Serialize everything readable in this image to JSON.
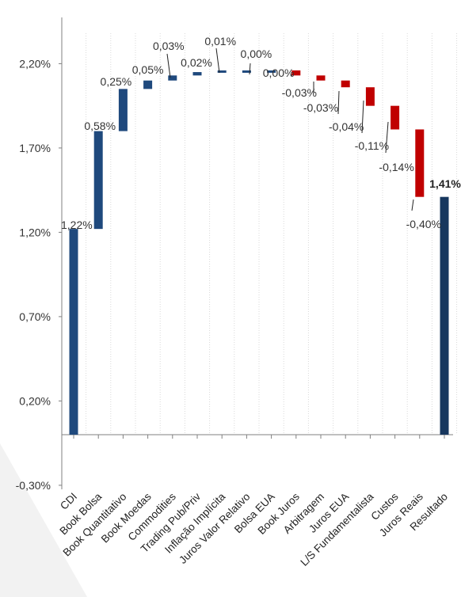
{
  "chart_data": {
    "type": "waterfall",
    "categories": [
      "CDI",
      "Book Bolsa",
      "Book Quantitativo",
      "Book Moedas",
      "Commodities",
      "Trading Pub/Priv",
      "Inflação Implícita",
      "Juros Valor Relativo",
      "Bolsa EUA",
      "Book Juros",
      "Arbitragem",
      "Juros EUA",
      "L/S Fundamentalista",
      "Custos",
      "Juros Reais",
      "Resultado"
    ],
    "values": [
      1.22,
      0.58,
      0.25,
      0.05,
      0.03,
      0.02,
      0.01,
      0.0,
      0.0,
      -0.03,
      -0.03,
      -0.04,
      -0.11,
      -0.14,
      -0.4,
      1.41
    ],
    "labels": [
      "1,22%",
      "0,58%",
      "0,25%",
      "0,05%",
      "0,03%",
      "0,02%",
      "0,01%",
      "0,00%",
      "0,00%",
      "-0,03%",
      "-0,03%",
      "-0,04%",
      "-0,11%",
      "-0,14%",
      "-0,40%",
      "1,41%"
    ],
    "bar_kind": [
      "total",
      "delta",
      "delta",
      "delta",
      "delta",
      "delta",
      "delta",
      "delta",
      "delta",
      "delta",
      "delta",
      "delta",
      "delta",
      "delta",
      "delta",
      "total"
    ],
    "y_ticks": [
      -0.3,
      0.2,
      0.7,
      1.2,
      1.7,
      2.2
    ],
    "y_tick_labels": [
      "-0,30%",
      "0,20%",
      "0,70%",
      "1,20%",
      "1,70%",
      "2,20%"
    ],
    "ylim": [
      -0.3,
      2.5
    ],
    "colors": {
      "positive": "#1f497d",
      "negative": "#c00000",
      "result": "#17375e",
      "axis": "#808080",
      "gridline": "#d9d9d9"
    },
    "grid": "vertical-dotted"
  }
}
